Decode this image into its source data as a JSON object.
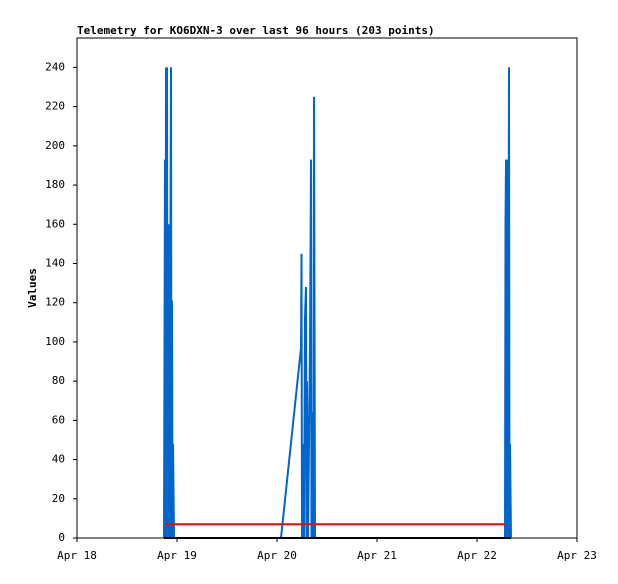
{
  "chart_data": {
    "type": "line",
    "title": "Telemetry for KO6DXN-3 over last 96 hours (203 points)",
    "y_label": "Values",
    "xlim": [
      18,
      23
    ],
    "xticks": [
      {
        "value": 18,
        "label": "Apr 18"
      },
      {
        "value": 19,
        "label": "Apr 19"
      },
      {
        "value": 20,
        "label": "Apr 20"
      },
      {
        "value": 21,
        "label": "Apr 21"
      },
      {
        "value": 22,
        "label": "Apr 22"
      },
      {
        "value": 23,
        "label": "Apr 23"
      }
    ],
    "ylim": [
      0,
      255
    ],
    "yticks": [
      0,
      20,
      40,
      60,
      80,
      100,
      120,
      140,
      160,
      180,
      200,
      220,
      240
    ],
    "series": [
      {
        "color": "#0066cc",
        "x": [
          18.87,
          18.88,
          18.885,
          18.89,
          18.895,
          18.9,
          18.905,
          18.91,
          18.92,
          18.925,
          18.94,
          18.945,
          18.95,
          18.955,
          18.96,
          18.97,
          20.04,
          20.24,
          20.245,
          20.25,
          20.26,
          20.27,
          20.28,
          20.29,
          20.295,
          20.3,
          20.31,
          20.33,
          20.34,
          20.345,
          20.36,
          20.365,
          20.37,
          20.38,
          22.28,
          22.285,
          22.29,
          22.295,
          22.3,
          22.31,
          22.32,
          22.325,
          22.33,
          22.34
        ],
        "values": [
          0,
          193,
          0,
          240,
          0,
          240,
          48,
          0,
          160,
          0,
          240,
          0,
          121,
          0,
          48,
          0,
          0,
          97,
          145,
          0,
          48,
          0,
          113,
          128,
          0,
          80,
          0,
          97,
          193,
          0,
          64,
          0,
          225,
          0,
          0,
          160,
          193,
          0,
          193,
          0,
          240,
          0,
          48,
          0
        ]
      },
      {
        "color": "#ff0000",
        "x": [
          18.88,
          22.28
        ],
        "values": [
          7,
          7
        ]
      },
      {
        "color": "#000000",
        "x": [
          18.87,
          22.34
        ],
        "values": [
          0,
          0
        ]
      }
    ]
  }
}
